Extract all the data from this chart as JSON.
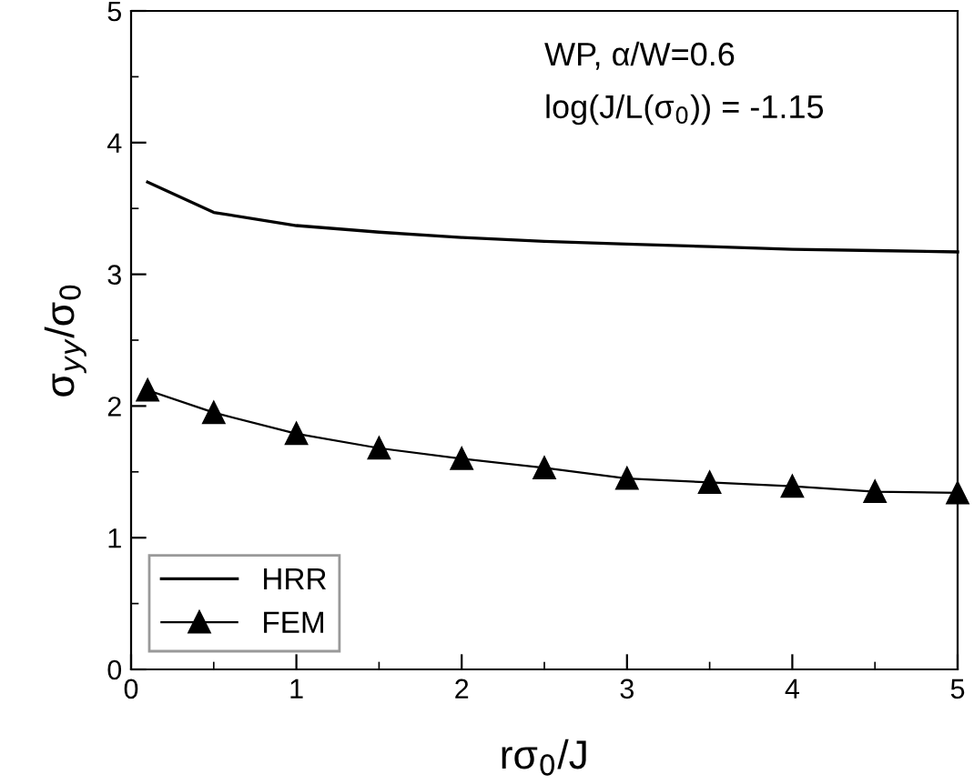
{
  "chart_data": {
    "type": "line",
    "xlabel": "rσ$_{0}$/J",
    "ylabel": "σ$_{yy}$/σ$_{0}$",
    "annotations": [
      "WP, α/W=0.6",
      "log(J/L(σ$_{0}$)) = -1.15"
    ],
    "x": [
      0.1,
      0.5,
      1,
      1.5,
      2,
      2.5,
      3,
      3.5,
      4,
      4.5,
      5
    ],
    "series": [
      {
        "name": "HRR",
        "color": "#000000",
        "marker": "none",
        "values": [
          3.7,
          3.47,
          3.37,
          3.32,
          3.28,
          3.25,
          3.23,
          3.21,
          3.19,
          3.18,
          3.17
        ]
      },
      {
        "name": "FEM",
        "color": "#000000",
        "marker": "triangle",
        "values": [
          2.12,
          1.95,
          1.79,
          1.68,
          1.6,
          1.53,
          1.45,
          1.42,
          1.39,
          1.35,
          1.34
        ]
      }
    ],
    "xlim": [
      0,
      5
    ],
    "ylim": [
      0,
      5
    ],
    "xticks": [
      0,
      1,
      2,
      3,
      4,
      5
    ],
    "yticks": [
      0,
      1,
      2,
      3,
      4,
      5
    ],
    "grid": false,
    "legend": "bottom left",
    "line_style": "solid"
  }
}
